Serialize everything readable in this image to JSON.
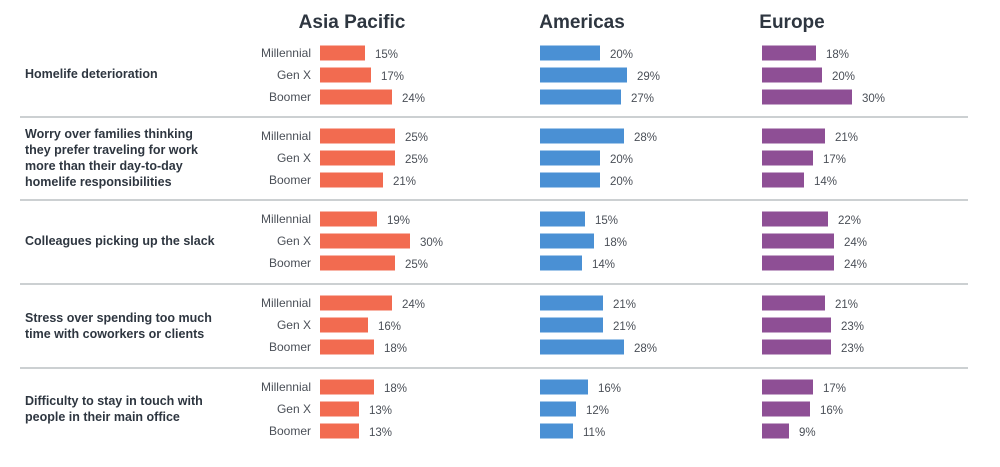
{
  "chart_data": {
    "type": "bar",
    "orientation": "horizontal",
    "unit": "%",
    "regions": [
      "Asia Pacific",
      "Americas",
      "Europe"
    ],
    "generations": [
      "Millennial",
      "Gen X",
      "Boomer"
    ],
    "colors": {
      "Asia Pacific": "#f26b50",
      "Americas": "#4a90d4",
      "Europe": "#8e4f95"
    },
    "categories": [
      {
        "label": [
          "Homelife deterioration"
        ],
        "values": {
          "Asia Pacific": [
            15,
            17,
            24
          ],
          "Americas": [
            20,
            29,
            27
          ],
          "Europe": [
            18,
            20,
            30
          ]
        }
      },
      {
        "label": [
          "Worry over families thinking",
          "they prefer traveling for work",
          "more than their day-to-day",
          "homelife responsibilities"
        ],
        "values": {
          "Asia Pacific": [
            25,
            25,
            21
          ],
          "Americas": [
            28,
            20,
            20
          ],
          "Europe": [
            21,
            17,
            14
          ]
        }
      },
      {
        "label": [
          "Colleagues picking up the slack"
        ],
        "values": {
          "Asia Pacific": [
            19,
            30,
            25
          ],
          "Americas": [
            15,
            18,
            14
          ],
          "Europe": [
            22,
            24,
            24
          ]
        }
      },
      {
        "label": [
          "Stress over spending too much",
          "time with coworkers or clients"
        ],
        "values": {
          "Asia Pacific": [
            24,
            16,
            18
          ],
          "Americas": [
            21,
            21,
            28
          ],
          "Europe": [
            21,
            23,
            23
          ]
        }
      },
      {
        "label": [
          "Difficulty to stay in touch with",
          "people in their main office"
        ],
        "values": {
          "Asia Pacific": [
            18,
            13,
            13
          ],
          "Americas": [
            16,
            12,
            11
          ],
          "Europe": [
            17,
            16,
            9
          ]
        }
      }
    ],
    "grid": false,
    "legend": "none"
  }
}
